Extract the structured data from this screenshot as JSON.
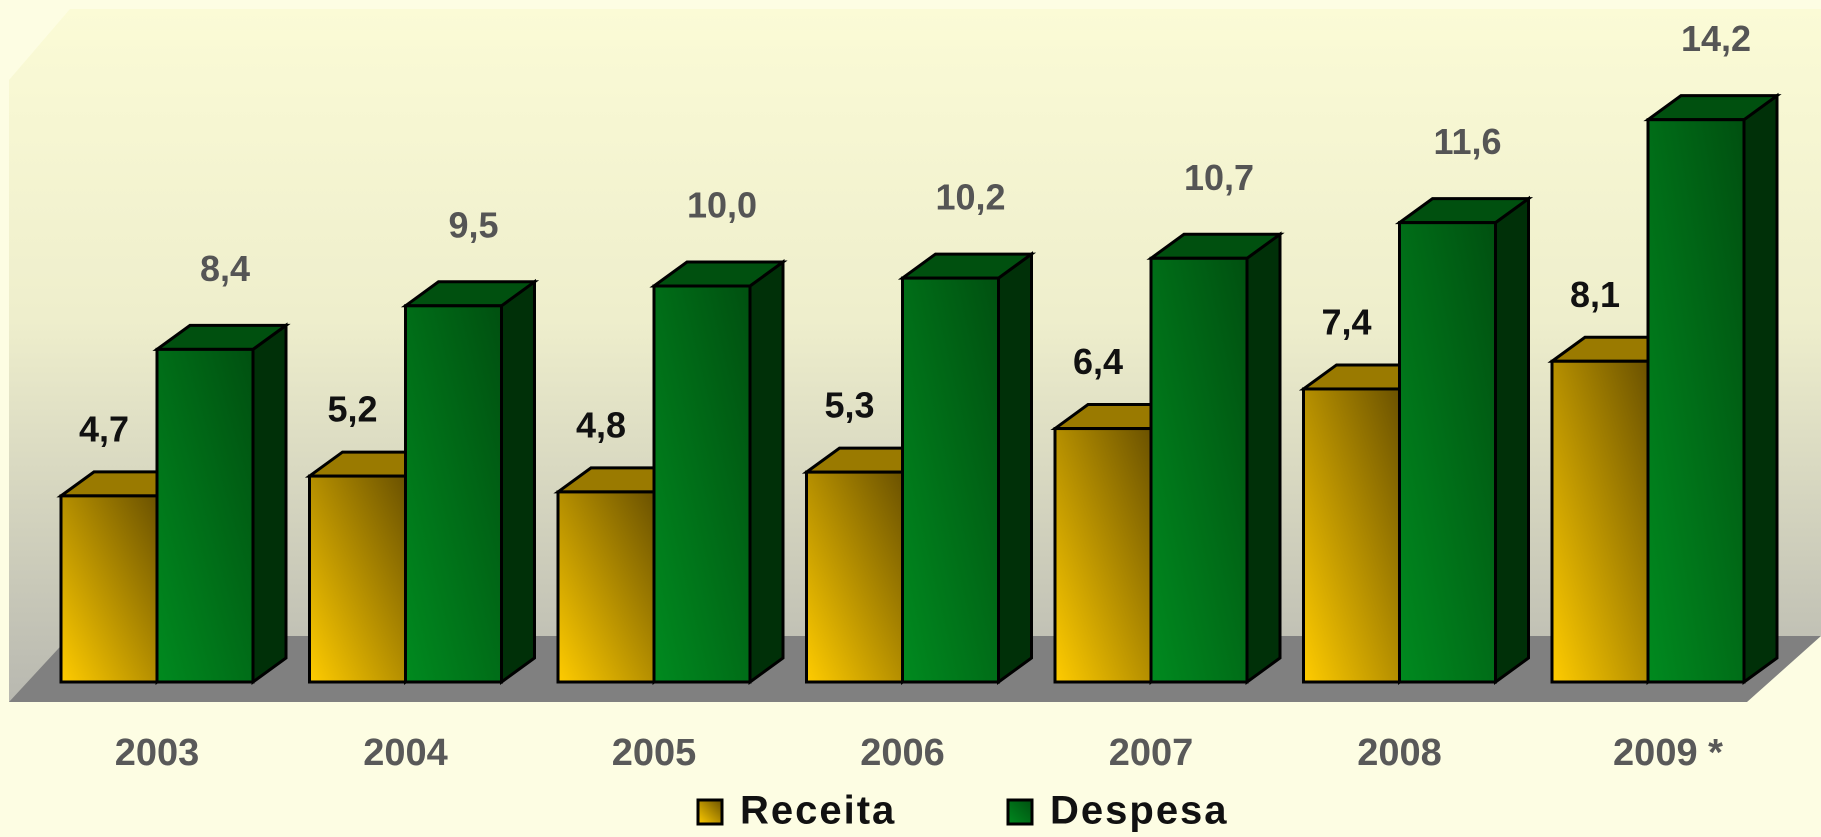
{
  "chart_data": {
    "type": "bar3d",
    "categories": [
      "2003",
      "2004",
      "2005",
      "2006",
      "2007",
      "2008",
      "2009 *"
    ],
    "series": [
      {
        "name": "Receita",
        "color": "#e6b800",
        "values": [
          4.7,
          5.2,
          4.8,
          5.3,
          6.4,
          7.4,
          8.1
        ],
        "value_labels": [
          "4,7",
          "5,2",
          "4,8",
          "5,3",
          "6,4",
          "7,4",
          "8,1"
        ]
      },
      {
        "name": "Despesa",
        "color": "#006b14",
        "values": [
          8.4,
          9.5,
          10.0,
          10.2,
          10.7,
          11.6,
          14.2
        ],
        "value_labels": [
          "8,4",
          "9,5",
          "10,0",
          "10,2",
          "10,7",
          "11,6",
          "14,2"
        ]
      }
    ]
  }
}
